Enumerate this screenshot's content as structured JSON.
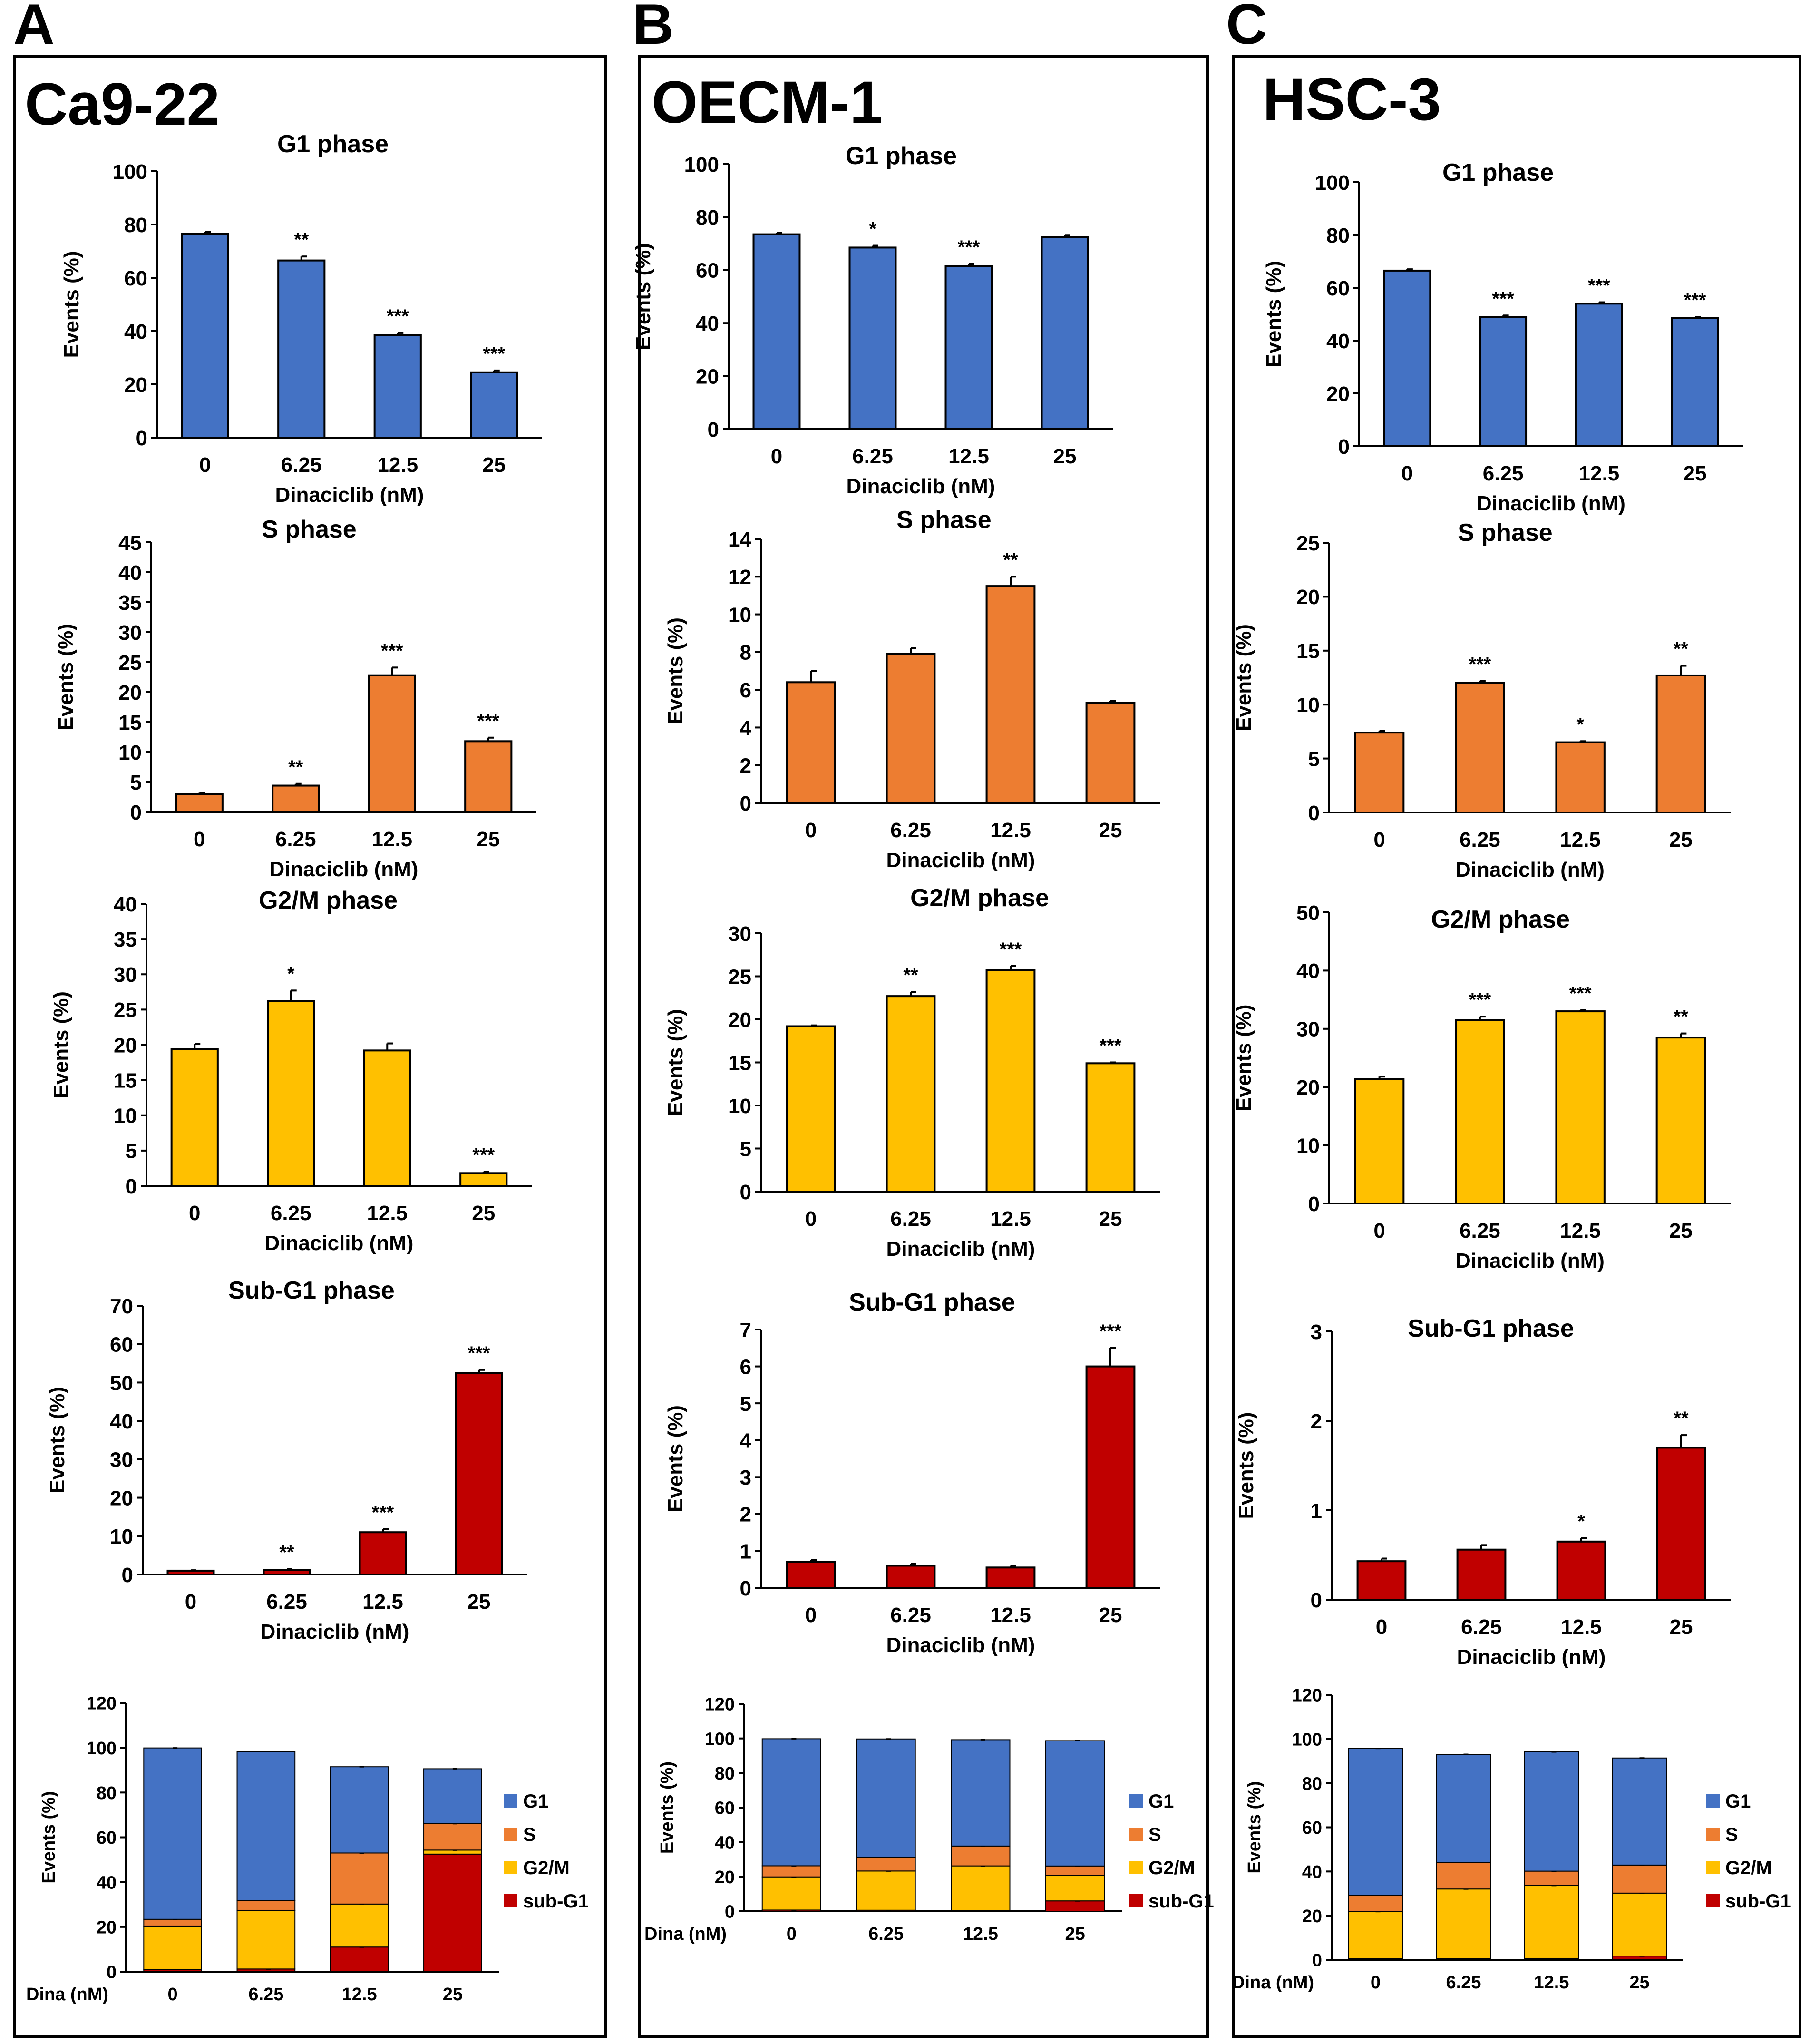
{
  "colors": {
    "G1": "#4472C4",
    "S": "#ED7D31",
    "G2M": "#FFC000",
    "subG1": "#C00000",
    "frame": "#000000"
  },
  "panels": [
    {
      "letter": "A",
      "cell_line": "Ca9-22"
    },
    {
      "letter": "B",
      "cell_line": "OECM-1"
    },
    {
      "letter": "C",
      "cell_line": "HSC-3"
    }
  ],
  "chart_data": [
    {
      "panel": "A",
      "type": "bar",
      "title": "G1 phase",
      "xlabel": "Dinaciclib (nM)",
      "ylabel": "Events (%)",
      "color_key": "G1",
      "categories": [
        "0",
        "6.25",
        "12.5",
        "25"
      ],
      "values": [
        76.5,
        66.5,
        38.5,
        24.5
      ],
      "errors": [
        0.8,
        1.5,
        0.8,
        0.7
      ],
      "significance": [
        "",
        "**",
        "***",
        "***"
      ],
      "ylim": [
        0,
        100
      ],
      "yticks": [
        0,
        20,
        40,
        60,
        80,
        100
      ]
    },
    {
      "panel": "A",
      "type": "bar",
      "title": "S phase",
      "xlabel": "Dinaciclib (nM)",
      "ylabel": "Events (%)",
      "color_key": "S",
      "categories": [
        "0",
        "6.25",
        "12.5",
        "25"
      ],
      "values": [
        3.0,
        4.4,
        22.8,
        11.8
      ],
      "errors": [
        0.2,
        0.3,
        1.3,
        0.6
      ],
      "significance": [
        "",
        "**",
        "***",
        "***"
      ],
      "ylim": [
        0,
        45
      ],
      "yticks": [
        0,
        5,
        10,
        15,
        20,
        25,
        30,
        35,
        40,
        45
      ]
    },
    {
      "panel": "A",
      "type": "bar",
      "title": "G2/M phase",
      "xlabel": "Dinaciclib (nM)",
      "ylabel": "Events (%)",
      "color_key": "G2M",
      "categories": [
        "0",
        "6.25",
        "12.5",
        "25"
      ],
      "values": [
        19.4,
        26.2,
        19.2,
        1.8
      ],
      "errors": [
        0.7,
        1.5,
        1.0,
        0.2
      ],
      "significance": [
        "",
        "*",
        "",
        "***"
      ],
      "ylim": [
        0,
        40
      ],
      "yticks": [
        0,
        5,
        10,
        15,
        20,
        25,
        30,
        35,
        40
      ]
    },
    {
      "panel": "A",
      "type": "bar",
      "title": "Sub-G1 phase",
      "xlabel": "Dinaciclib (nM)",
      "ylabel": "Events (%)",
      "color_key": "subG1",
      "categories": [
        "0",
        "6.25",
        "12.5",
        "25"
      ],
      "values": [
        1.0,
        1.2,
        11.0,
        52.5
      ],
      "errors": [
        0.1,
        0.2,
        0.8,
        0.8
      ],
      "significance": [
        "",
        "**",
        "***",
        "***"
      ],
      "ylim": [
        0,
        70
      ],
      "yticks": [
        0,
        10,
        20,
        30,
        40,
        50,
        60,
        70
      ]
    },
    {
      "panel": "A",
      "type": "stacked-bar",
      "xlabel": "Dina (nM)",
      "ylabel": "Events (%)",
      "categories": [
        "0",
        "6.25",
        "12.5",
        "25"
      ],
      "ylim": [
        0,
        120
      ],
      "yticks": [
        0,
        20,
        40,
        60,
        80,
        100,
        120
      ],
      "legend": [
        "G1",
        "S",
        "G2/M",
        "sub-G1"
      ],
      "legend_keys": [
        "G1",
        "S",
        "G2M",
        "subG1"
      ],
      "series": [
        {
          "name": "sub-G1",
          "key": "subG1",
          "values": [
            1.0,
            1.2,
            11.0,
            52.5
          ]
        },
        {
          "name": "G2/M",
          "key": "G2M",
          "values": [
            19.4,
            26.2,
            19.2,
            1.8
          ]
        },
        {
          "name": "S",
          "key": "S",
          "values": [
            3.0,
            4.4,
            22.8,
            11.8
          ]
        },
        {
          "name": "G1",
          "key": "G1",
          "values": [
            76.5,
            66.5,
            38.5,
            24.5
          ]
        }
      ]
    },
    {
      "panel": "B",
      "type": "bar",
      "title": "G1 phase",
      "xlabel": "Dinaciclib (nM)",
      "ylabel": "Events (%)",
      "color_key": "G1",
      "categories": [
        "0",
        "6.25",
        "12.5",
        "25"
      ],
      "values": [
        73.5,
        68.5,
        61.5,
        72.5
      ],
      "errors": [
        0.5,
        0.7,
        0.8,
        0.7
      ],
      "significance": [
        "",
        "*",
        "***",
        ""
      ],
      "ylim": [
        0,
        100
      ],
      "yticks": [
        0,
        20,
        40,
        60,
        80,
        100
      ]
    },
    {
      "panel": "B",
      "type": "bar",
      "title": "S phase",
      "xlabel": "Dinaciclib (nM)",
      "ylabel": "Events (%)",
      "color_key": "S",
      "categories": [
        "0",
        "6.25",
        "12.5",
        "25"
      ],
      "values": [
        6.4,
        7.9,
        11.5,
        5.3
      ],
      "errors": [
        0.6,
        0.3,
        0.5,
        0.1
      ],
      "significance": [
        "",
        "",
        "**",
        ""
      ],
      "ylim": [
        0,
        14
      ],
      "yticks": [
        0,
        2,
        4,
        6,
        8,
        10,
        12,
        14
      ]
    },
    {
      "panel": "B",
      "type": "bar",
      "title": "G2/M phase",
      "xlabel": "Dinaciclib (nM)",
      "ylabel": "Events (%)",
      "color_key": "G2M",
      "categories": [
        "0",
        "6.25",
        "12.5",
        "25"
      ],
      "values": [
        19.2,
        22.7,
        25.7,
        14.9
      ],
      "errors": [
        0.1,
        0.5,
        0.5,
        0.1
      ],
      "significance": [
        "",
        "**",
        "***",
        "***"
      ],
      "ylim": [
        0,
        30
      ],
      "yticks": [
        0,
        5,
        10,
        15,
        20,
        25,
        30
      ]
    },
    {
      "panel": "B",
      "type": "bar",
      "title": "Sub-G1 phase",
      "xlabel": "Dinaciclib (nM)",
      "ylabel": "Events (%)",
      "color_key": "subG1",
      "categories": [
        "0",
        "6.25",
        "12.5",
        "25"
      ],
      "values": [
        0.7,
        0.6,
        0.55,
        6.0
      ],
      "errors": [
        0.05,
        0.05,
        0.05,
        0.5
      ],
      "significance": [
        "",
        "",
        "",
        "***"
      ],
      "ylim": [
        0,
        7
      ],
      "yticks": [
        0,
        1,
        2,
        3,
        4,
        5,
        6,
        7
      ]
    },
    {
      "panel": "B",
      "type": "stacked-bar",
      "xlabel": "Dina (nM)",
      "ylabel": "Events (%)",
      "categories": [
        "0",
        "6.25",
        "12.5",
        "25"
      ],
      "ylim": [
        0,
        120
      ],
      "yticks": [
        0,
        20,
        40,
        60,
        80,
        100,
        120
      ],
      "legend": [
        "G1",
        "S",
        "G2/M",
        "sub-G1"
      ],
      "legend_keys": [
        "G1",
        "S",
        "G2M",
        "subG1"
      ],
      "series": [
        {
          "name": "sub-G1",
          "key": "subG1",
          "values": [
            0.7,
            0.6,
            0.55,
            6.0
          ]
        },
        {
          "name": "G2/M",
          "key": "G2M",
          "values": [
            19.2,
            22.7,
            25.7,
            14.9
          ]
        },
        {
          "name": "S",
          "key": "S",
          "values": [
            6.4,
            7.9,
            11.5,
            5.3
          ]
        },
        {
          "name": "G1",
          "key": "G1",
          "values": [
            73.5,
            68.5,
            61.5,
            72.5
          ]
        }
      ]
    },
    {
      "panel": "C",
      "type": "bar",
      "title": "G1 phase",
      "xlabel": "Dinaciclib (nM)",
      "ylabel": "Events (%)",
      "color_key": "G1",
      "categories": [
        "0",
        "6.25",
        "12.5",
        "25"
      ],
      "values": [
        66.5,
        49.0,
        54.0,
        48.5
      ],
      "errors": [
        0.5,
        0.5,
        0.5,
        0.5
      ],
      "significance": [
        "",
        "***",
        "***",
        "***"
      ],
      "ylim": [
        0,
        100
      ],
      "yticks": [
        0,
        20,
        40,
        60,
        80,
        100
      ]
    },
    {
      "panel": "C",
      "type": "bar",
      "title": "S phase",
      "xlabel": "Dinaciclib (nM)",
      "ylabel": "Events (%)",
      "color_key": "S",
      "categories": [
        "0",
        "6.25",
        "12.5",
        "25"
      ],
      "values": [
        7.4,
        12.0,
        6.5,
        12.7
      ],
      "errors": [
        0.15,
        0.2,
        0.1,
        0.9
      ],
      "significance": [
        "",
        "***",
        "*",
        "**"
      ],
      "ylim": [
        0,
        25
      ],
      "yticks": [
        0,
        5,
        10,
        15,
        20,
        25
      ]
    },
    {
      "panel": "C",
      "type": "bar",
      "title": "G2/M phase",
      "xlabel": "Dinaciclib (nM)",
      "ylabel": "Events (%)",
      "color_key": "G2M",
      "categories": [
        "0",
        "6.25",
        "12.5",
        "25"
      ],
      "values": [
        21.4,
        31.5,
        33.0,
        28.5
      ],
      "errors": [
        0.4,
        0.6,
        0.2,
        0.7
      ],
      "significance": [
        "",
        "***",
        "***",
        "**"
      ],
      "ylim": [
        0,
        50
      ],
      "yticks": [
        0,
        10,
        20,
        30,
        40,
        50
      ]
    },
    {
      "panel": "C",
      "type": "bar",
      "title": "Sub-G1 phase",
      "xlabel": "Dinaciclib (nM)",
      "ylabel": "Events (%)",
      "color_key": "subG1",
      "categories": [
        "0",
        "6.25",
        "12.5",
        "25"
      ],
      "values": [
        0.43,
        0.56,
        0.65,
        1.7
      ],
      "errors": [
        0.03,
        0.05,
        0.04,
        0.14
      ],
      "significance": [
        "",
        "",
        "*",
        "**"
      ],
      "ylim": [
        0,
        3
      ],
      "yticks": [
        0,
        1,
        2,
        3
      ]
    },
    {
      "panel": "C",
      "type": "stacked-bar",
      "xlabel": "Dina (nM)",
      "ylabel": "Events (%)",
      "categories": [
        "0",
        "6.25",
        "12.5",
        "25"
      ],
      "ylim": [
        0,
        120
      ],
      "yticks": [
        0,
        20,
        40,
        60,
        80,
        100,
        120
      ],
      "legend": [
        "G1",
        "S",
        "G2/M",
        "sub-G1"
      ],
      "legend_keys": [
        "G1",
        "S",
        "G2M",
        "subG1"
      ],
      "series": [
        {
          "name": "sub-G1",
          "key": "subG1",
          "values": [
            0.43,
            0.56,
            0.65,
            1.7
          ]
        },
        {
          "name": "G2/M",
          "key": "G2M",
          "values": [
            21.4,
            31.5,
            33.0,
            28.5
          ]
        },
        {
          "name": "S",
          "key": "S",
          "values": [
            7.4,
            12.0,
            6.5,
            12.7
          ]
        },
        {
          "name": "G1",
          "key": "G1",
          "values": [
            66.5,
            49.0,
            54.0,
            48.5
          ]
        }
      ]
    }
  ]
}
